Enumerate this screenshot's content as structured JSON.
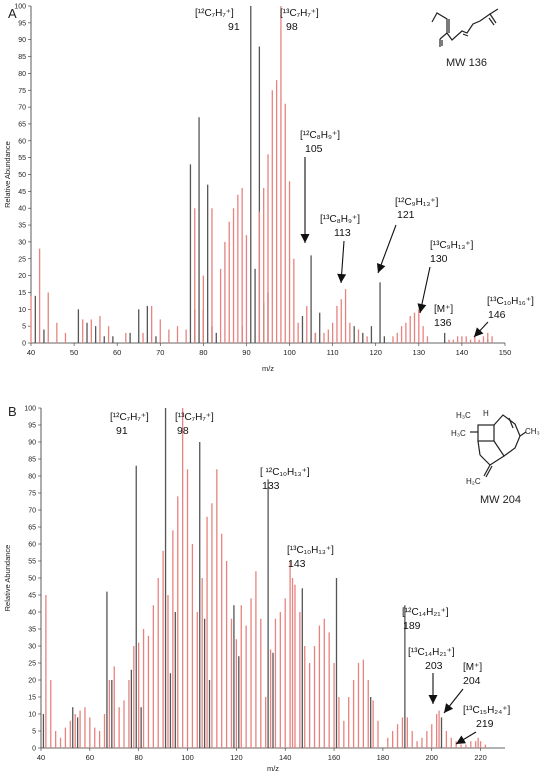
{
  "chart_data": [
    {
      "type": "bar",
      "panel_label": "A",
      "xlabel": "m/z",
      "ylabel": "Relative Abundance",
      "xlim": [
        40,
        150
      ],
      "ylim": [
        0,
        100
      ],
      "xticks": [
        40,
        50,
        60,
        70,
        80,
        90,
        100,
        110,
        120,
        130,
        140,
        150
      ],
      "yticks": [
        0,
        5,
        10,
        15,
        20,
        25,
        30,
        35,
        40,
        45,
        50,
        55,
        60,
        65,
        70,
        75,
        80,
        85,
        90,
        95,
        100
      ],
      "mw_label": "MW 136",
      "colors": {
        "12C": "#555555",
        "13C": "#e8827e"
      },
      "series": [
        {
          "color_key": "12C",
          "points": [
            [
              41,
              14
            ],
            [
              43,
              4
            ],
            [
              51,
              10
            ],
            [
              53,
              6
            ],
            [
              55,
              5
            ],
            [
              57,
              2
            ],
            [
              59,
              2
            ],
            [
              63,
              3
            ],
            [
              65,
              10
            ],
            [
              67,
              11
            ],
            [
              69,
              2
            ],
            [
              77,
              53
            ],
            [
              78,
              10
            ],
            [
              79,
              67
            ],
            [
              80,
              10
            ],
            [
              81,
              47
            ],
            [
              82,
              5
            ],
            [
              83,
              3
            ],
            [
              89,
              5
            ],
            [
              91,
              100
            ],
            [
              92,
              22
            ],
            [
              93,
              88
            ],
            [
              94,
              12
            ],
            [
              95,
              15
            ],
            [
              103,
              8
            ],
            [
              105,
              26
            ],
            [
              106,
              3
            ],
            [
              107,
              9
            ],
            [
              115,
              5
            ],
            [
              117,
              3
            ],
            [
              119,
              5
            ],
            [
              121,
              18
            ],
            [
              122,
              2
            ],
            [
              136,
              3
            ],
            [
              146,
              1
            ]
          ]
        },
        {
          "color_key": "13C",
          "points": [
            [
              40,
              14
            ],
            [
              42,
              28
            ],
            [
              44,
              15
            ],
            [
              46,
              6
            ],
            [
              48,
              3
            ],
            [
              52,
              7
            ],
            [
              54,
              7
            ],
            [
              56,
              8
            ],
            [
              58,
              5
            ],
            [
              62,
              3
            ],
            [
              66,
              3
            ],
            [
              68,
              11
            ],
            [
              70,
              7
            ],
            [
              72,
              4
            ],
            [
              74,
              5
            ],
            [
              76,
              4
            ],
            [
              78,
              40
            ],
            [
              80,
              20
            ],
            [
              82,
              40
            ],
            [
              84,
              22
            ],
            [
              85,
              30
            ],
            [
              86,
              36
            ],
            [
              87,
              40
            ],
            [
              88,
              44
            ],
            [
              89,
              46
            ],
            [
              90,
              32
            ],
            [
              93,
              39
            ],
            [
              94,
              46
            ],
            [
              95,
              56
            ],
            [
              96,
              75
            ],
            [
              97,
              78
            ],
            [
              98,
              100
            ],
            [
              99,
              71
            ],
            [
              100,
              48
            ],
            [
              101,
              25
            ],
            [
              102,
              6
            ],
            [
              104,
              11
            ],
            [
              106,
              3
            ],
            [
              108,
              3
            ],
            [
              109,
              4
            ],
            [
              110,
              6
            ],
            [
              111,
              11
            ],
            [
              112,
              13
            ],
            [
              113,
              16
            ],
            [
              114,
              6
            ],
            [
              116,
              4
            ],
            [
              118,
              2
            ],
            [
              124,
              2
            ],
            [
              125,
              3
            ],
            [
              126,
              5
            ],
            [
              127,
              6
            ],
            [
              128,
              8
            ],
            [
              129,
              9
            ],
            [
              130,
              10
            ],
            [
              131,
              5
            ],
            [
              132,
              2
            ],
            [
              137,
              1
            ],
            [
              138,
              1
            ],
            [
              139,
              2
            ],
            [
              140,
              2
            ],
            [
              141,
              2
            ],
            [
              142,
              1
            ],
            [
              143,
              2
            ],
            [
              144,
              1
            ],
            [
              145,
              2
            ],
            [
              146,
              3
            ],
            [
              147,
              2
            ]
          ]
        }
      ],
      "annotations": [
        {
          "label": "[¹²C₇H₇⁺]",
          "mz": "91"
        },
        {
          "label": "[¹³C₇H₇⁺]",
          "mz": "98"
        },
        {
          "label": "[¹²C₈H₉⁺]",
          "mz": "105"
        },
        {
          "label": "[¹³C₈H₉⁺]",
          "mz": "113"
        },
        {
          "label": "[¹²C₉H₁₃⁺]",
          "mz": "121"
        },
        {
          "label": "[¹³C₉H₁₃⁺]",
          "mz": "130"
        },
        {
          "label": "[M⁺]",
          "mz": "136"
        },
        {
          "label": "[¹³C₁₀H₁₆⁺]",
          "mz": "146"
        }
      ]
    },
    {
      "type": "bar",
      "panel_label": "B",
      "xlabel": "m/z",
      "ylabel": "Relative Abundance",
      "xlim": [
        40,
        230
      ],
      "ylim": [
        0,
        100
      ],
      "xticks": [
        40,
        60,
        80,
        100,
        120,
        140,
        160,
        180,
        200,
        220
      ],
      "yticks": [
        0,
        5,
        10,
        15,
        20,
        25,
        30,
        35,
        40,
        45,
        50,
        55,
        60,
        65,
        70,
        75,
        80,
        85,
        90,
        95,
        100
      ],
      "mw_label": "MW 204",
      "structure_labels": [
        "H",
        "H₃C",
        "H₃C",
        "CH₃",
        "H₂C"
      ],
      "colors": {
        "12C": "#555555",
        "13C": "#e8827e"
      },
      "series": [
        {
          "color_key": "12C",
          "points": [
            [
              41,
              10
            ],
            [
              53,
              12
            ],
            [
              55,
              9
            ],
            [
              67,
              46
            ],
            [
              69,
              20
            ],
            [
              77,
              23
            ],
            [
              79,
              83
            ],
            [
              81,
              12
            ],
            [
              91,
              100
            ],
            [
              93,
              22
            ],
            [
              95,
              40
            ],
            [
              105,
              90
            ],
            [
              107,
              38
            ],
            [
              109,
              20
            ],
            [
              119,
              42
            ],
            [
              121,
              27
            ],
            [
              133,
              79
            ],
            [
              135,
              28
            ],
            [
              147,
              47
            ],
            [
              161,
              50
            ],
            [
              175,
              15
            ],
            [
              189,
              42
            ],
            [
              204,
              9
            ]
          ]
        },
        {
          "color_key": "13C",
          "points": [
            [
              42,
              45
            ],
            [
              44,
              20
            ],
            [
              46,
              5
            ],
            [
              48,
              3
            ],
            [
              50,
              6
            ],
            [
              52,
              8
            ],
            [
              54,
              10
            ],
            [
              56,
              11
            ],
            [
              58,
              12
            ],
            [
              60,
              9
            ],
            [
              62,
              6
            ],
            [
              64,
              5
            ],
            [
              66,
              10
            ],
            [
              68,
              20
            ],
            [
              70,
              24
            ],
            [
              72,
              12
            ],
            [
              74,
              14
            ],
            [
              76,
              20
            ],
            [
              78,
              30
            ],
            [
              80,
              31
            ],
            [
              82,
              35
            ],
            [
              84,
              33
            ],
            [
              86,
              42
            ],
            [
              88,
              50
            ],
            [
              90,
              58
            ],
            [
              92,
              45
            ],
            [
              94,
              64
            ],
            [
              96,
              74
            ],
            [
              98,
              100
            ],
            [
              100,
              82
            ],
            [
              102,
              60
            ],
            [
              104,
              40
            ],
            [
              106,
              50
            ],
            [
              108,
              68
            ],
            [
              110,
              72
            ],
            [
              112,
              82
            ],
            [
              114,
              63
            ],
            [
              116,
              55
            ],
            [
              118,
              38
            ],
            [
              120,
              32
            ],
            [
              122,
              42
            ],
            [
              124,
              36
            ],
            [
              126,
              44
            ],
            [
              128,
              52
            ],
            [
              130,
              38
            ],
            [
              132,
              15
            ],
            [
              134,
              29
            ],
            [
              136,
              38
            ],
            [
              138,
              40
            ],
            [
              140,
              44
            ],
            [
              142,
              55
            ],
            [
              143,
              50
            ],
            [
              144,
              48
            ],
            [
              146,
              40
            ],
            [
              148,
              30
            ],
            [
              150,
              25
            ],
            [
              152,
              30
            ],
            [
              154,
              36
            ],
            [
              156,
              38
            ],
            [
              158,
              34
            ],
            [
              160,
              25
            ],
            [
              162,
              15
            ],
            [
              164,
              8
            ],
            [
              166,
              15
            ],
            [
              168,
              20
            ],
            [
              170,
              25
            ],
            [
              172,
              26
            ],
            [
              174,
              20
            ],
            [
              176,
              14
            ],
            [
              178,
              8
            ],
            [
              182,
              3
            ],
            [
              184,
              5
            ],
            [
              186,
              7
            ],
            [
              188,
              9
            ],
            [
              190,
              9
            ],
            [
              192,
              5
            ],
            [
              194,
              2
            ],
            [
              196,
              3
            ],
            [
              198,
              5
            ],
            [
              200,
              7
            ],
            [
              202,
              10
            ],
            [
              203,
              11
            ],
            [
              206,
              5
            ],
            [
              208,
              3
            ],
            [
              210,
              2
            ],
            [
              212,
              1
            ],
            [
              214,
              1
            ],
            [
              216,
              2
            ],
            [
              218,
              2
            ],
            [
              219,
              3
            ],
            [
              220,
              2
            ],
            [
              222,
              1
            ]
          ]
        }
      ],
      "annotations": [
        {
          "label": "[¹²C₇H₇⁺]",
          "mz": "91"
        },
        {
          "label": "[¹³C₇H₇⁺]",
          "mz": "98"
        },
        {
          "label": "[ ¹²C₁₀H₁₃⁺]",
          "mz": "133"
        },
        {
          "label": "[¹³C₁₀H₁₃⁺]",
          "mz": "143"
        },
        {
          "label": "[¹²C₁₄H₂₁⁺]",
          "mz": "189"
        },
        {
          "label": "[¹³C₁₄H₂₁⁺]",
          "mz": "203"
        },
        {
          "label": "[M⁺]",
          "mz": "204"
        },
        {
          "label": "[¹³C₁₅H₂₄⁺]",
          "mz": "219"
        }
      ]
    }
  ]
}
